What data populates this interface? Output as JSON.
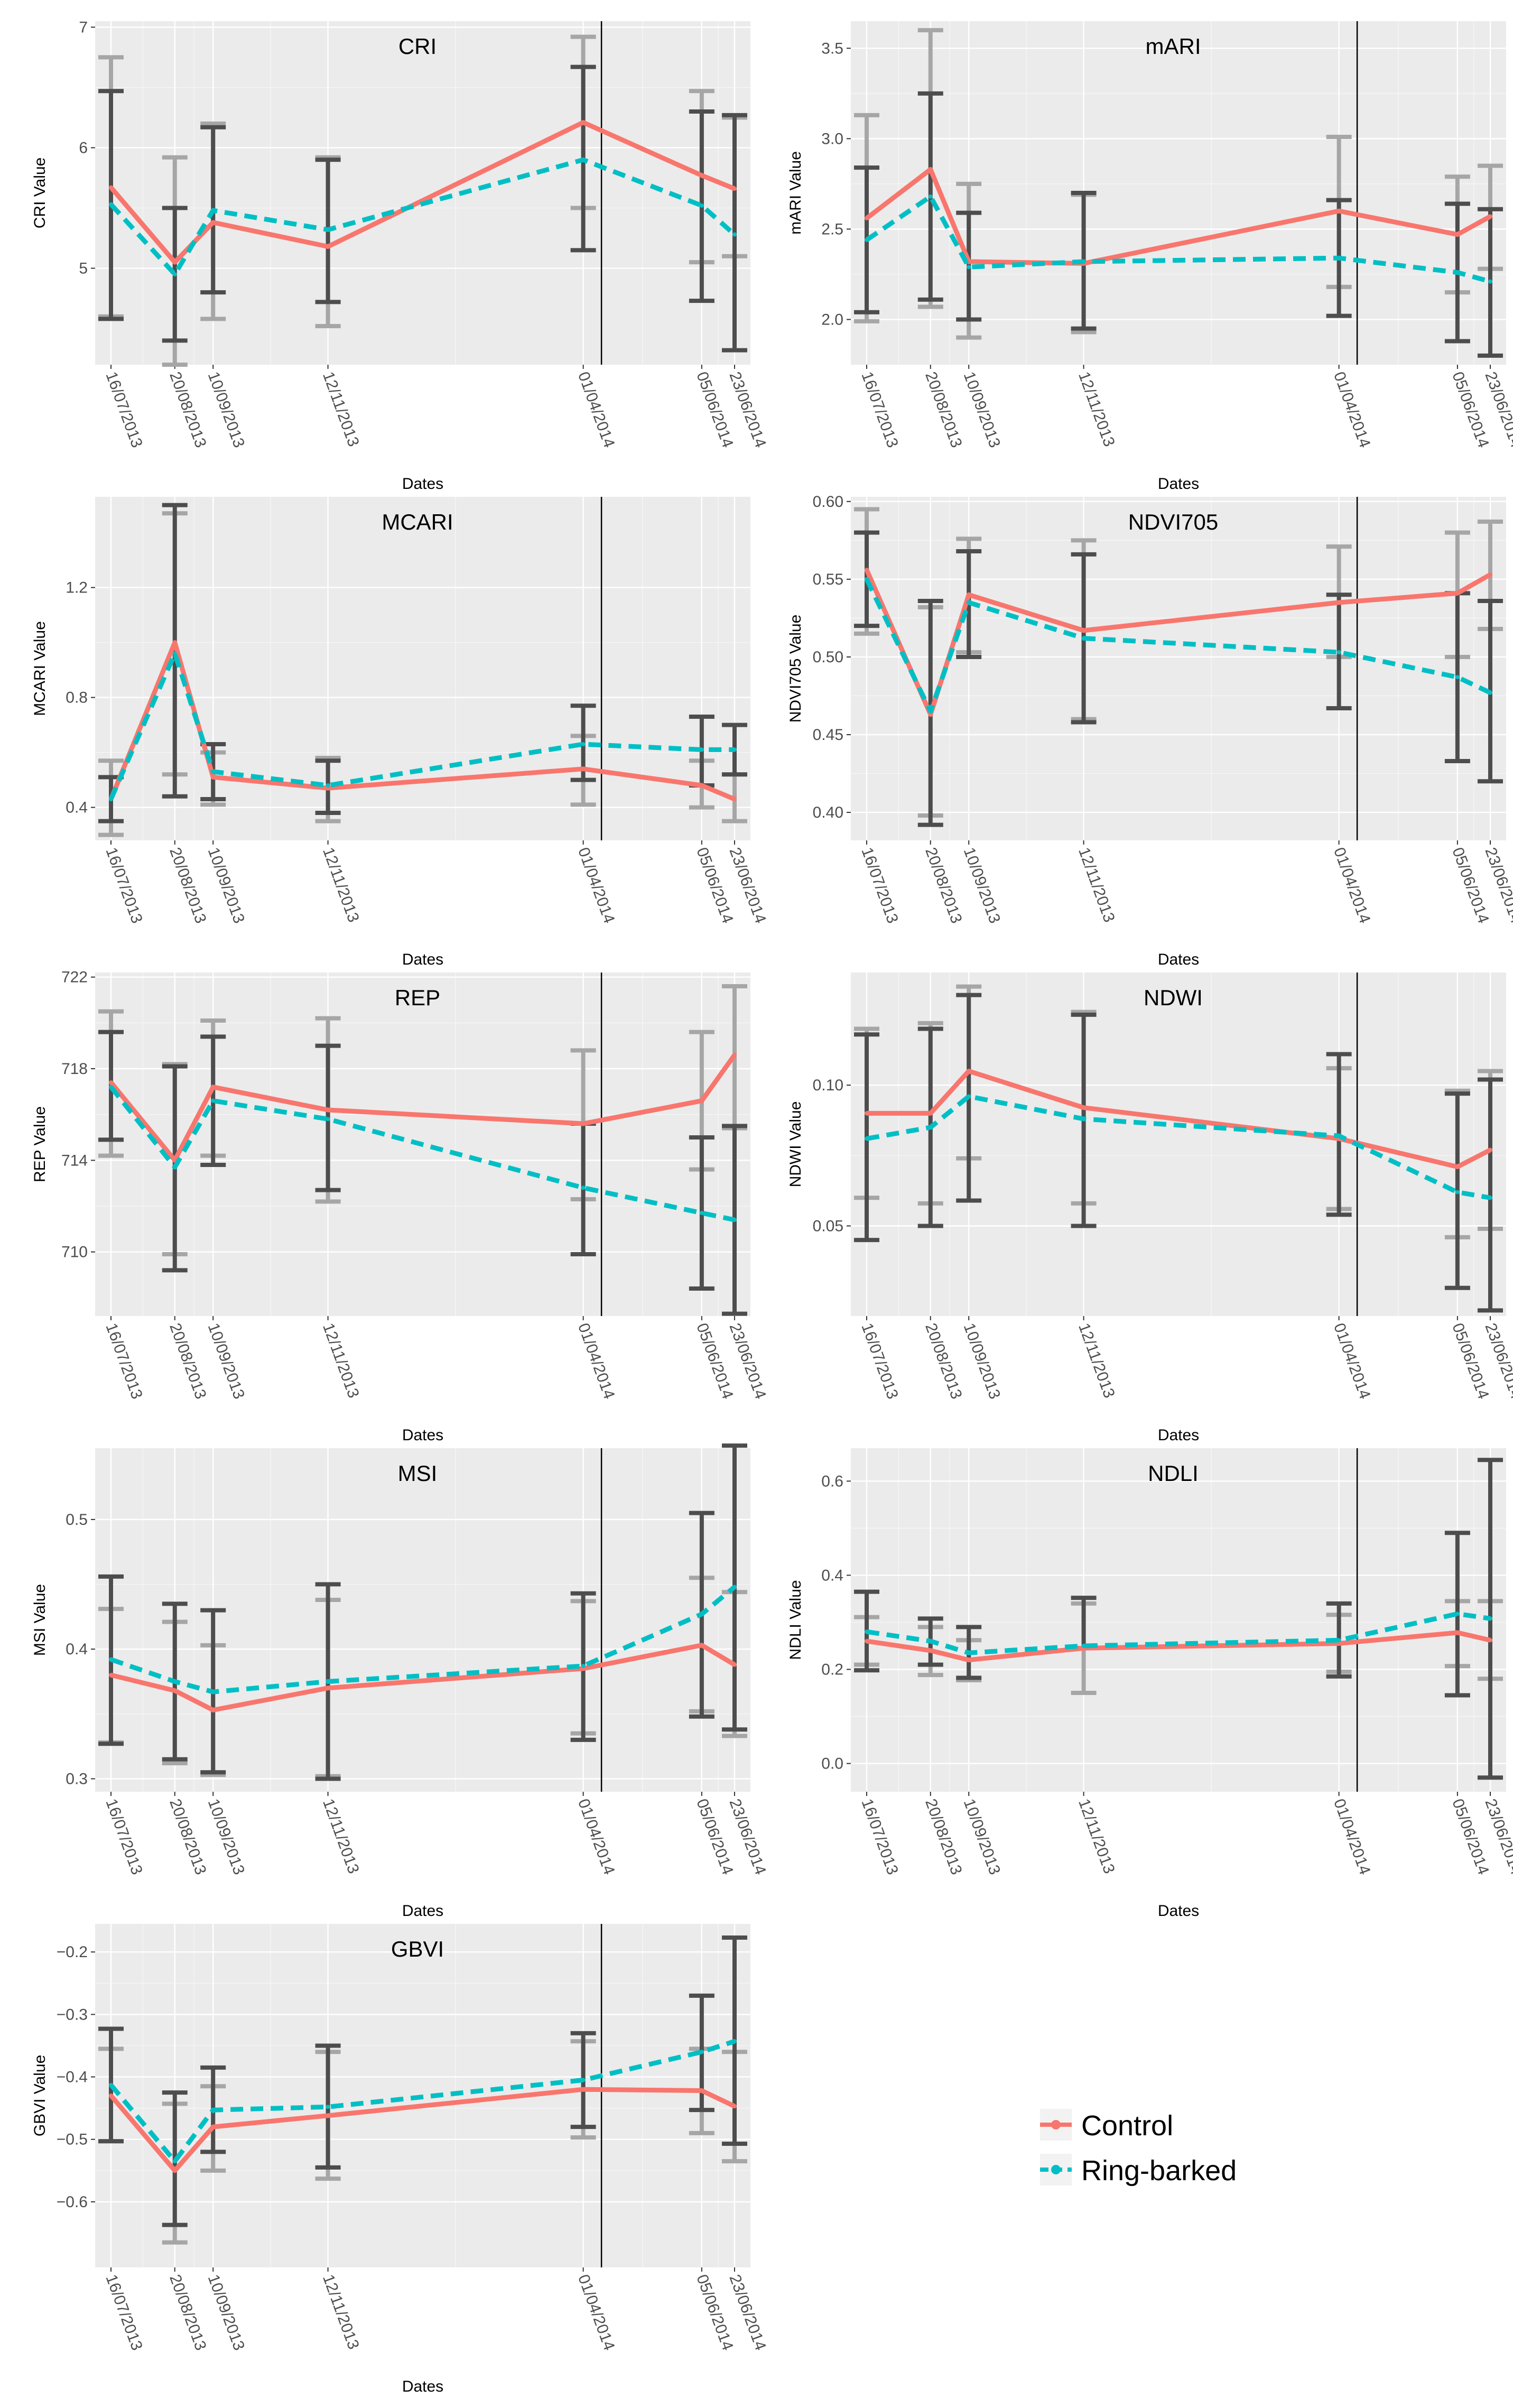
{
  "colors": {
    "control": "#F8766D",
    "ringbarked": "#00BFC4",
    "panel": "#EBEBEB",
    "grid": "#FFFFFF",
    "err_control": "#A6A6A6",
    "err_ring": "#4D4D4D",
    "vline": "#000000"
  },
  "dates": [
    "16/07/2013",
    "20/08/2013",
    "10/09/2013",
    "12/11/2013",
    "01/04/2014",
    "05/06/2014",
    "23/06/2014"
  ],
  "date_days": [
    0,
    35,
    56,
    119,
    259,
    324,
    342
  ],
  "ringbark_event_day": 269,
  "xlabel": "Dates",
  "legend": {
    "control": "Control",
    "ringbarked": "Ring-barked"
  },
  "chart_data": [
    {
      "type": "line",
      "title": "CRI",
      "xlabel": "Dates",
      "ylabel": "CRI Value",
      "ylim": [
        4.2,
        7.05
      ],
      "yticks": [
        5,
        6,
        7
      ],
      "yticklabels": [
        "5",
        "6",
        "7"
      ],
      "series": [
        {
          "name": "Control",
          "values": [
            5.67,
            5.05,
            5.38,
            5.18,
            6.21,
            5.77,
            5.66
          ],
          "err_low": [
            4.6,
            4.2,
            4.58,
            4.52,
            5.5,
            5.05,
            5.1
          ],
          "err_high": [
            6.75,
            5.92,
            6.2,
            5.92,
            6.92,
            6.47,
            6.25
          ]
        },
        {
          "name": "Ring-barked",
          "values": [
            5.53,
            4.95,
            5.48,
            5.32,
            5.9,
            5.52,
            5.28
          ],
          "err_low": [
            4.58,
            4.4,
            4.8,
            4.72,
            5.15,
            4.73,
            4.32
          ],
          "err_high": [
            6.47,
            5.5,
            6.17,
            5.9,
            6.67,
            6.3,
            6.27
          ]
        }
      ]
    },
    {
      "type": "line",
      "title": "mARI",
      "xlabel": "Dates",
      "ylabel": "mARI Value",
      "ylim": [
        1.75,
        3.65
      ],
      "yticks": [
        2.0,
        2.5,
        3.0,
        3.5
      ],
      "yticklabels": [
        "2.0",
        "2.5",
        "3.0",
        "3.5"
      ],
      "series": [
        {
          "name": "Control",
          "values": [
            2.56,
            2.83,
            2.32,
            2.31,
            2.6,
            2.47,
            2.57
          ],
          "err_low": [
            1.99,
            2.07,
            1.9,
            1.93,
            2.18,
            2.15,
            2.28
          ],
          "err_high": [
            3.13,
            3.6,
            2.75,
            2.69,
            3.01,
            2.79,
            2.85
          ]
        },
        {
          "name": "Ring-barked",
          "values": [
            2.44,
            2.68,
            2.29,
            2.32,
            2.34,
            2.26,
            2.21
          ],
          "err_low": [
            2.04,
            2.11,
            2.0,
            1.95,
            2.02,
            1.88,
            1.8
          ],
          "err_high": [
            2.84,
            3.25,
            2.59,
            2.7,
            2.66,
            2.64,
            2.61
          ]
        }
      ]
    },
    {
      "type": "line",
      "title": "MCARI",
      "xlabel": "Dates",
      "ylabel": "MCARI Value",
      "ylim": [
        0.28,
        1.53
      ],
      "yticks": [
        0.4,
        0.8,
        1.2
      ],
      "yticklabels": [
        "0.4",
        "0.8",
        "1.2"
      ],
      "series": [
        {
          "name": "Control",
          "values": [
            0.43,
            1.0,
            0.51,
            0.47,
            0.54,
            0.48,
            0.43
          ],
          "err_low": [
            0.3,
            0.52,
            0.41,
            0.35,
            0.41,
            0.4,
            0.35
          ],
          "err_high": [
            0.57,
            1.47,
            0.6,
            0.58,
            0.66,
            0.57,
            0.52
          ]
        },
        {
          "name": "Ring-barked",
          "values": [
            0.43,
            0.96,
            0.53,
            0.48,
            0.63,
            0.61,
            0.61
          ],
          "err_low": [
            0.35,
            0.44,
            0.43,
            0.38,
            0.5,
            0.48,
            0.52
          ],
          "err_high": [
            0.51,
            1.5,
            0.63,
            0.57,
            0.77,
            0.73,
            0.7
          ]
        }
      ]
    },
    {
      "type": "line",
      "title": "NDVI705",
      "xlabel": "Dates",
      "ylabel": "NDVI705 Value",
      "ylim": [
        0.382,
        0.603
      ],
      "yticks": [
        0.4,
        0.45,
        0.5,
        0.55,
        0.6
      ],
      "yticklabels": [
        "0.40",
        "0.45",
        "0.50",
        "0.55",
        "0.60"
      ],
      "series": [
        {
          "name": "Control",
          "values": [
            0.556,
            0.463,
            0.54,
            0.517,
            0.535,
            0.541,
            0.553
          ],
          "err_low": [
            0.515,
            0.398,
            0.503,
            0.46,
            0.5,
            0.5,
            0.518
          ],
          "err_high": [
            0.595,
            0.532,
            0.576,
            0.575,
            0.571,
            0.58,
            0.587
          ]
        },
        {
          "name": "Ring-barked",
          "values": [
            0.55,
            0.465,
            0.535,
            0.512,
            0.503,
            0.487,
            0.477
          ],
          "err_low": [
            0.52,
            0.392,
            0.5,
            0.458,
            0.467,
            0.433,
            0.42
          ],
          "err_high": [
            0.58,
            0.536,
            0.568,
            0.566,
            0.54,
            0.541,
            0.536
          ]
        }
      ]
    },
    {
      "type": "line",
      "title": "REP",
      "xlabel": "Dates",
      "ylabel": "REP Value",
      "ylim": [
        707.2,
        722.2
      ],
      "yticks": [
        710,
        714,
        718,
        722
      ],
      "yticklabels": [
        "710",
        "714",
        "718",
        "722"
      ],
      "series": [
        {
          "name": "Control",
          "values": [
            717.4,
            714.0,
            717.2,
            716.2,
            715.6,
            716.6,
            718.6
          ],
          "err_low": [
            714.2,
            709.9,
            714.2,
            712.2,
            712.3,
            713.6,
            715.4
          ],
          "err_high": [
            720.5,
            718.2,
            720.1,
            720.2,
            718.8,
            719.6,
            721.6
          ]
        },
        {
          "name": "Ring-barked",
          "values": [
            717.2,
            713.7,
            716.6,
            715.8,
            712.8,
            711.7,
            711.4
          ],
          "err_low": [
            714.9,
            709.2,
            713.8,
            712.7,
            709.9,
            708.4,
            707.3
          ],
          "err_high": [
            719.6,
            718.1,
            719.4,
            719.0,
            715.6,
            715.0,
            715.5
          ]
        }
      ]
    },
    {
      "type": "line",
      "title": "NDWI",
      "xlabel": "Dates",
      "ylabel": "NDWI Value",
      "ylim": [
        0.018,
        0.14
      ],
      "yticks": [
        0.05,
        0.1
      ],
      "yticklabels": [
        "0.05",
        "0.10"
      ],
      "series": [
        {
          "name": "Control",
          "values": [
            0.09,
            0.09,
            0.105,
            0.092,
            0.081,
            0.071,
            0.077
          ],
          "err_low": [
            0.06,
            0.058,
            0.074,
            0.058,
            0.056,
            0.046,
            0.049
          ],
          "err_high": [
            0.12,
            0.122,
            0.135,
            0.126,
            0.106,
            0.098,
            0.105
          ]
        },
        {
          "name": "Ring-barked",
          "values": [
            0.081,
            0.085,
            0.096,
            0.088,
            0.082,
            0.062,
            0.06
          ],
          "err_low": [
            0.045,
            0.05,
            0.059,
            0.05,
            0.054,
            0.028,
            0.02
          ],
          "err_high": [
            0.118,
            0.12,
            0.132,
            0.125,
            0.111,
            0.097,
            0.102
          ]
        }
      ]
    },
    {
      "type": "line",
      "title": "MSI",
      "xlabel": "Dates",
      "ylabel": "MSI Value",
      "ylim": [
        0.29,
        0.555
      ],
      "yticks": [
        0.3,
        0.4,
        0.5
      ],
      "yticklabels": [
        "0.3",
        "0.4",
        "0.5"
      ],
      "series": [
        {
          "name": "Control",
          "values": [
            0.38,
            0.368,
            0.353,
            0.37,
            0.385,
            0.403,
            0.388
          ],
          "err_low": [
            0.328,
            0.312,
            0.303,
            0.302,
            0.335,
            0.352,
            0.333
          ],
          "err_high": [
            0.431,
            0.421,
            0.403,
            0.438,
            0.437,
            0.455,
            0.444
          ]
        },
        {
          "name": "Ring-barked",
          "values": [
            0.392,
            0.375,
            0.367,
            0.375,
            0.387,
            0.427,
            0.448
          ],
          "err_low": [
            0.327,
            0.315,
            0.305,
            0.3,
            0.33,
            0.348,
            0.338
          ],
          "err_high": [
            0.456,
            0.435,
            0.43,
            0.45,
            0.443,
            0.505,
            0.557
          ]
        }
      ]
    },
    {
      "type": "line",
      "title": "NDLI",
      "xlabel": "Dates",
      "ylabel": "NDLI Value",
      "ylim": [
        -0.06,
        0.67
      ],
      "yticks": [
        0.0,
        0.2,
        0.4,
        0.6
      ],
      "yticklabels": [
        "0.0",
        "0.2",
        "0.4",
        "0.6"
      ],
      "series": [
        {
          "name": "Control",
          "values": [
            0.26,
            0.24,
            0.22,
            0.245,
            0.255,
            0.278,
            0.262
          ],
          "err_low": [
            0.21,
            0.188,
            0.177,
            0.15,
            0.195,
            0.207,
            0.18
          ],
          "err_high": [
            0.311,
            0.29,
            0.262,
            0.34,
            0.316,
            0.345,
            0.345
          ]
        },
        {
          "name": "Ring-barked",
          "values": [
            0.28,
            0.26,
            0.235,
            0.25,
            0.262,
            0.318,
            0.308
          ],
          "err_low": [
            0.198,
            0.21,
            0.182,
            0.245,
            0.185,
            0.145,
            -0.03
          ],
          "err_high": [
            0.365,
            0.308,
            0.29,
            0.352,
            0.34,
            0.49,
            0.645
          ]
        }
      ]
    },
    {
      "type": "line",
      "title": "GBVI",
      "xlabel": "Dates",
      "ylabel": "GBVI Value",
      "ylim": [
        -0.705,
        -0.155
      ],
      "yticks": [
        -0.6,
        -0.5,
        -0.4,
        -0.3,
        -0.2
      ],
      "yticklabels": [
        "−0.6",
        "−0.5",
        "−0.4",
        "−0.3",
        "−0.2"
      ],
      "series": [
        {
          "name": "Control",
          "values": [
            -0.43,
            -0.55,
            -0.48,
            -0.462,
            -0.42,
            -0.422,
            -0.447
          ],
          "err_low": [
            -0.503,
            -0.665,
            -0.55,
            -0.563,
            -0.497,
            -0.49,
            -0.535
          ],
          "err_high": [
            -0.355,
            -0.443,
            -0.415,
            -0.36,
            -0.343,
            -0.355,
            -0.36
          ]
        },
        {
          "name": "Ring-barked",
          "values": [
            -0.413,
            -0.535,
            -0.453,
            -0.448,
            -0.405,
            -0.36,
            -0.343
          ],
          "err_low": [
            -0.503,
            -0.637,
            -0.52,
            -0.545,
            -0.48,
            -0.453,
            -0.507
          ],
          "err_high": [
            -0.323,
            -0.425,
            -0.385,
            -0.35,
            -0.33,
            -0.27,
            -0.177
          ]
        }
      ]
    }
  ]
}
